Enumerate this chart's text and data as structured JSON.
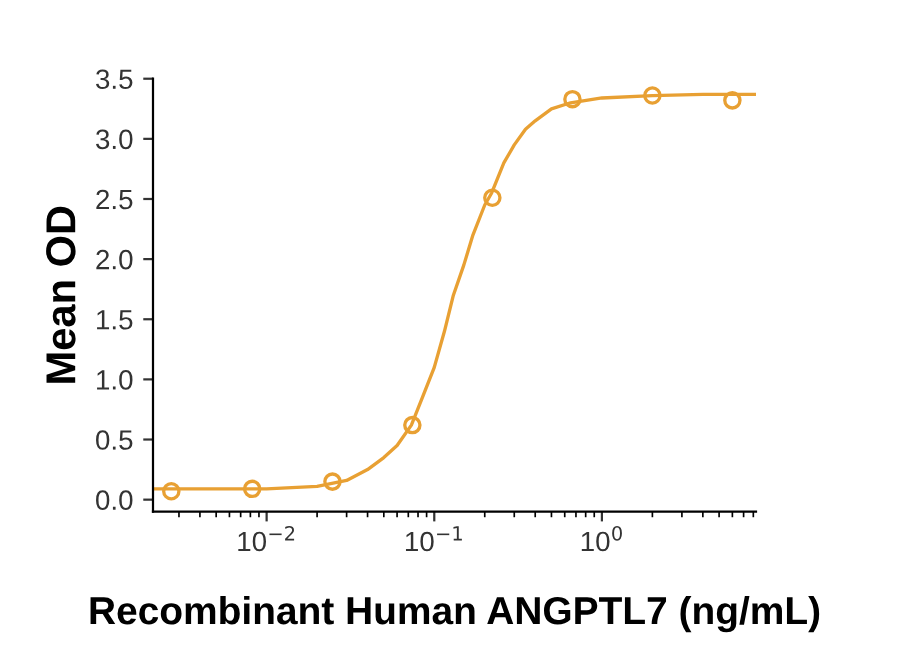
{
  "chart_data": {
    "type": "scatter",
    "xlabel": "Recombinant Human ANGPTL7 (ng/mL)",
    "ylabel": "Mean OD",
    "log": "x",
    "xlim": [
      0.0021,
      8.3
    ],
    "ylim": [
      -0.1,
      3.5
    ],
    "xticks": [
      {
        "value": 0.01,
        "label": "10$^{−2}$"
      },
      {
        "value": 0.1,
        "label": "10$^{−1}$"
      },
      {
        "value": 1,
        "label": "10$^{0}$"
      }
    ],
    "yticks": [
      {
        "value": 0,
        "label": "0.0"
      },
      {
        "value": 0.5,
        "label": "0.5"
      },
      {
        "value": 1,
        "label": "1.0"
      },
      {
        "value": 1.5,
        "label": "1.5"
      },
      {
        "value": 2,
        "label": "2.0"
      },
      {
        "value": 2.5,
        "label": "2.5"
      },
      {
        "value": 3,
        "label": "3.0"
      },
      {
        "value": 3.5,
        "label": "3.5"
      }
    ],
    "grid": false,
    "legend": false,
    "series": [
      {
        "marker": "circle",
        "color": "#e8a033",
        "x": [
          0.0027,
          0.0082,
          0.0247,
          0.074,
          0.222,
          0.667,
          2,
          6
        ],
        "values": [
          0.07,
          0.09,
          0.15,
          0.62,
          2.51,
          3.33,
          3.36,
          3.32
        ]
      },
      {
        "type": "line",
        "marker": "none",
        "line_style": "solid",
        "color": "#e8a033",
        "x": [
          0.0021,
          0.01,
          0.02,
          0.03,
          0.04,
          0.05,
          0.06,
          0.073,
          0.085,
          0.1,
          0.115,
          0.13,
          0.15,
          0.17,
          0.2,
          0.22,
          0.26,
          0.3,
          0.35,
          0.4,
          0.5,
          0.65,
          1,
          2,
          4,
          8.3
        ],
        "values": [
          0.09,
          0.09,
          0.11,
          0.16,
          0.25,
          0.35,
          0.45,
          0.62,
          0.85,
          1.1,
          1.4,
          1.7,
          1.95,
          2.2,
          2.45,
          2.55,
          2.8,
          2.95,
          3.08,
          3.15,
          3.25,
          3.3,
          3.34,
          3.36,
          3.37,
          3.37
        ]
      }
    ]
  }
}
